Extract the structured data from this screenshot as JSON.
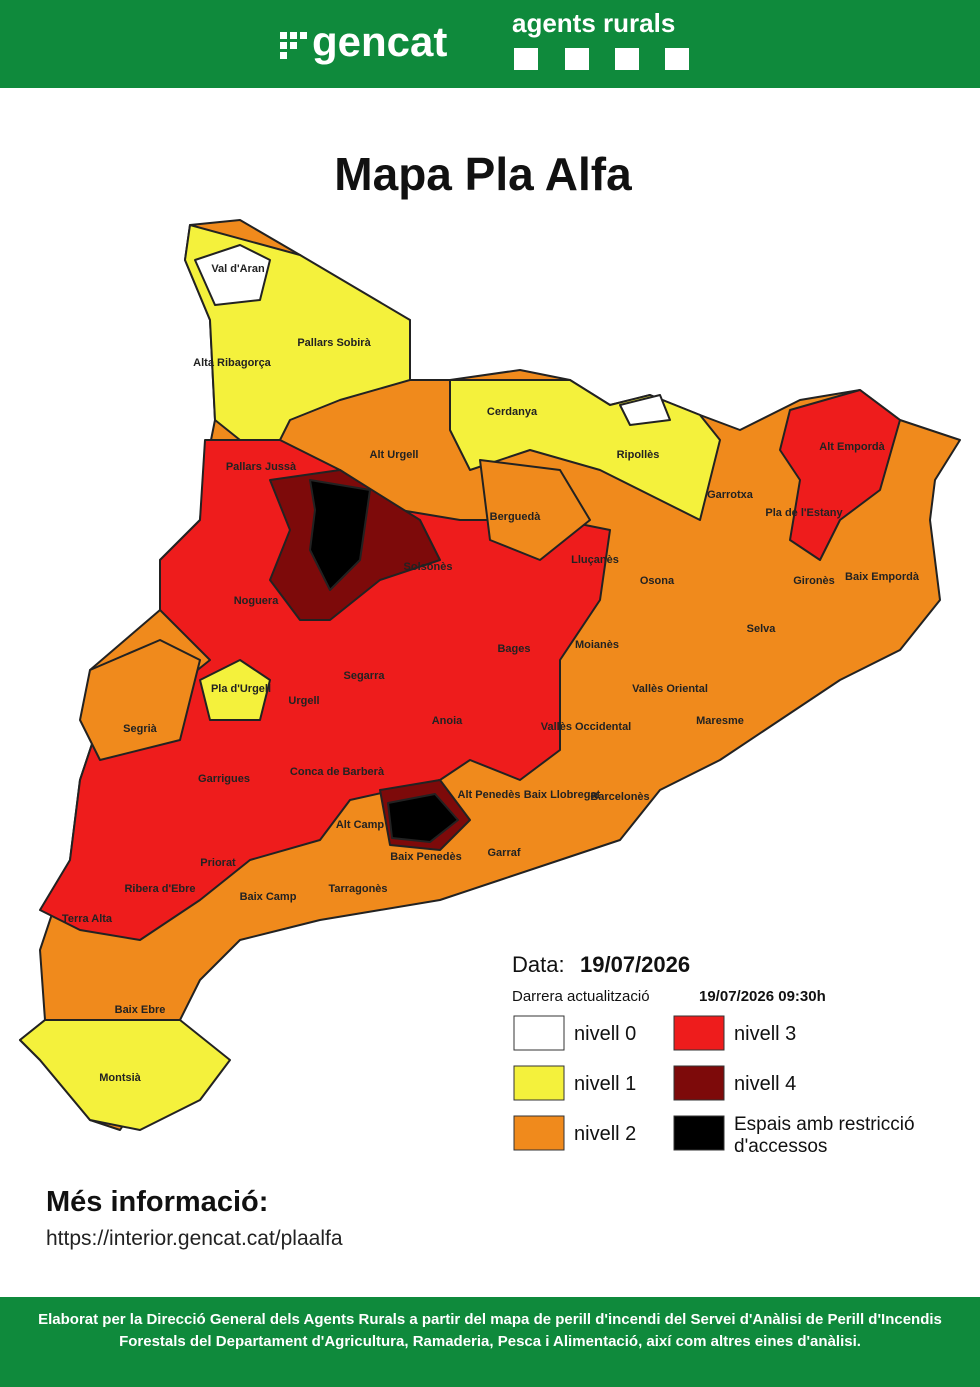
{
  "header": {
    "brand": "gencat",
    "agency": "agents rurals"
  },
  "title": "Mapa Pla Alfa",
  "regions": [
    "Val d'Aran",
    "Pallars Sobirà",
    "Alta Ribagorça",
    "Cerdanya",
    "Alt Urgell",
    "Ripollès",
    "Alt Empordà",
    "Pallars Jussà",
    "Garrotxa",
    "Berguedà",
    "Pla de l'Estany",
    "Lluçanès",
    "Solsonès",
    "Osona",
    "Gironès",
    "Baix Empordà",
    "Noguera",
    "Selva",
    "Moianès",
    "Bages",
    "Segarra",
    "Pla d'Urgell",
    "Vallès Oriental",
    "Urgell",
    "Anoia",
    "Segrià",
    "Maresme",
    "Vallès Occidental",
    "Garrigues",
    "Conca de Barberà",
    "Alt Penedès",
    "Baix Llobregat",
    "Barcelonès",
    "Alt Camp",
    "Garraf",
    "Baix Penedès",
    "Priorat",
    "Ribera d'Ebre",
    "Tarragonès",
    "Baix Camp",
    "Terra Alta",
    "Baix Ebre",
    "Montsià"
  ],
  "legend": {
    "date_label": "Data:",
    "date": "19/07/2026",
    "update_label": "Darrera actualització",
    "update": "19/07/2026 09:30h",
    "items": [
      "nivell 0",
      "nivell 1",
      "nivell 2",
      "nivell 3",
      "nivell 4",
      "Espais amb restricció",
      "d'accessos"
    ]
  },
  "info": {
    "title": "Més informació:",
    "url": "https://interior.gencat.cat/plaalfa"
  },
  "footer": "Elaborat per la Direcció General dels Agents Rurals a partir del mapa de perill d'incendi del Servei d'Anàlisi de Perill d'Incendis Forestals del Departament d'Agricultura, Ramaderia, Pesca i Alimentació, així com altres eines d'anàlisi."
}
